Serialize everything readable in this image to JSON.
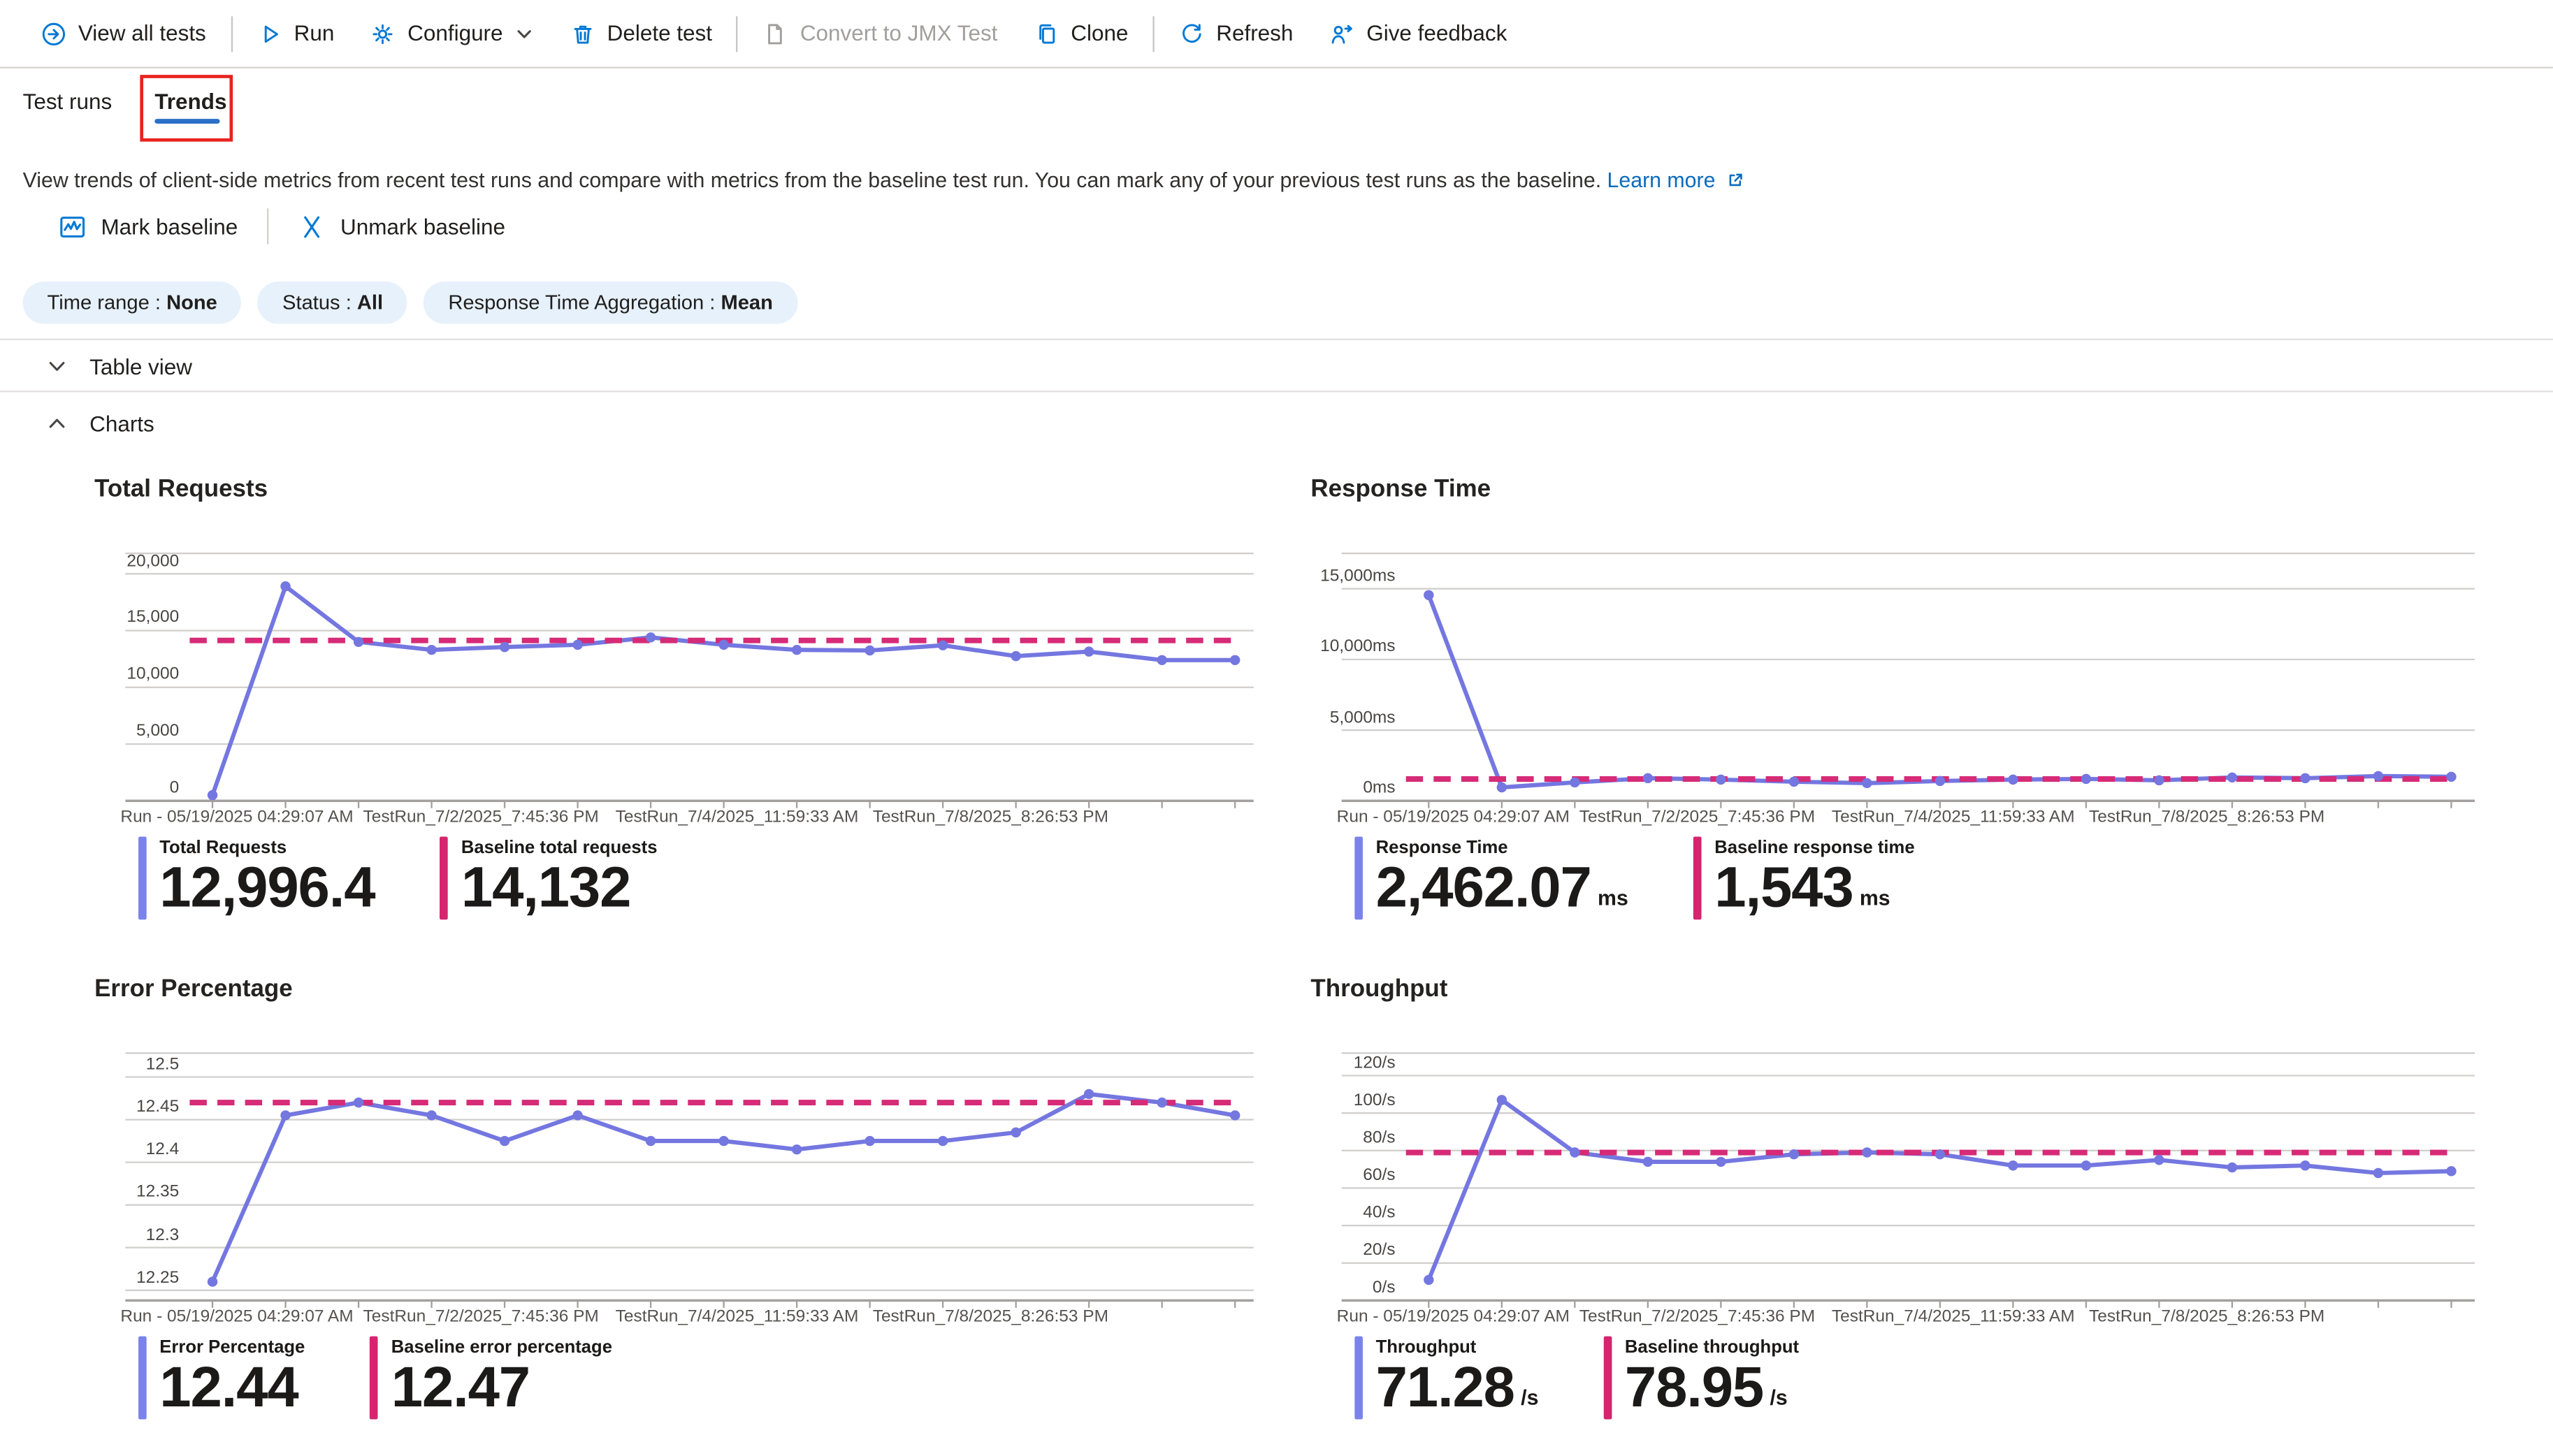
{
  "toolbar": {
    "view_all_tests": "View all tests",
    "run": "Run",
    "configure": "Configure",
    "delete_test": "Delete test",
    "convert_jmx": "Convert to JMX Test",
    "clone": "Clone",
    "refresh": "Refresh",
    "give_feedback": "Give feedback"
  },
  "tabs": {
    "test_runs": "Test runs",
    "trends": "Trends"
  },
  "description": {
    "text": "View trends of client-side metrics from recent test runs and compare with metrics from the baseline test run. You can mark any of your previous test runs as the baseline.",
    "link": "Learn more"
  },
  "baseline_actions": {
    "mark": "Mark baseline",
    "unmark": "Unmark baseline"
  },
  "filters": [
    {
      "text": "Time range : ",
      "value": "None"
    },
    {
      "text": "Status : ",
      "value": "All"
    },
    {
      "text": "Response Time Aggregation : ",
      "value": "Mean"
    }
  ],
  "sections": {
    "table_view": "Table view",
    "charts": "Charts"
  },
  "colors": {
    "accent": "#0078d4",
    "series_line": "#7477e0",
    "baseline_dash": "#d62b77",
    "stat_bar": "#7b83eb",
    "stat_baseline_bar": "#d6246e",
    "focus_red": "#e8231f"
  },
  "x_axis_labels": [
    "Run - 05/19/2025 04:29:07 AM",
    "TestRun_7/2/2025_7:45:36 PM",
    "TestRun_7/4/2025_11:59:33 AM",
    "TestRun_7/8/2025_8:26:53 PM"
  ],
  "chart_data": [
    {
      "type": "line",
      "title": "Total Requests",
      "y_domain": [
        0,
        21800
      ],
      "y_gridlines": [
        {
          "value": 0,
          "label": "0"
        },
        {
          "value": 5000,
          "label": "5,000"
        },
        {
          "value": 10000,
          "label": "10,000"
        },
        {
          "value": 15000,
          "label": "15,000"
        },
        {
          "value": 20000,
          "label": "20,000"
        }
      ],
      "series": [
        {
          "name": "Total Requests",
          "values": [
            500,
            18900,
            14000,
            13300,
            13550,
            13750,
            14400,
            13750,
            13300,
            13250,
            13700,
            12750,
            13150,
            12400,
            12400
          ]
        },
        {
          "name": "Baseline total requests",
          "style": "dashed",
          "value": 14132
        }
      ],
      "stats": [
        {
          "label": "Total Requests",
          "value": "12,996.4",
          "unit": ""
        },
        {
          "label": "Baseline total requests",
          "value": "14,132",
          "unit": ""
        }
      ]
    },
    {
      "type": "line",
      "title": "Response Time",
      "y_domain": [
        0,
        17500
      ],
      "y_gridlines": [
        {
          "value": 0,
          "label": "0ms"
        },
        {
          "value": 5000,
          "label": "5,000ms"
        },
        {
          "value": 10000,
          "label": "10,000ms"
        },
        {
          "value": 15000,
          "label": "15,000ms"
        }
      ],
      "series": [
        {
          "name": "Response Time",
          "values": [
            14550,
            950,
            1300,
            1600,
            1500,
            1350,
            1250,
            1400,
            1500,
            1550,
            1450,
            1650,
            1600,
            1750,
            1700
          ]
        },
        {
          "name": "Baseline response time",
          "style": "dashed",
          "value": 1543
        }
      ],
      "stats": [
        {
          "label": "Response Time",
          "value": "2,462.07",
          "unit": "ms"
        },
        {
          "label": "Baseline response time",
          "value": "1,543",
          "unit": "ms"
        }
      ]
    },
    {
      "type": "line",
      "title": "Error Percentage",
      "y_domain": [
        12.238,
        12.528
      ],
      "y_gridlines": [
        {
          "value": 12.25,
          "label": "12.25"
        },
        {
          "value": 12.3,
          "label": "12.3"
        },
        {
          "value": 12.35,
          "label": "12.35"
        },
        {
          "value": 12.4,
          "label": "12.4"
        },
        {
          "value": 12.45,
          "label": "12.45"
        },
        {
          "value": 12.5,
          "label": "12.5"
        }
      ],
      "series": [
        {
          "name": "Error Percentage",
          "values": [
            12.26,
            12.455,
            12.47,
            12.455,
            12.425,
            12.455,
            12.425,
            12.425,
            12.415,
            12.425,
            12.425,
            12.435,
            12.48,
            12.47,
            12.455
          ]
        },
        {
          "name": "Baseline error percentage",
          "style": "dashed",
          "value": 12.47
        }
      ],
      "stats": [
        {
          "label": "Error Percentage",
          "value": "12.44",
          "unit": ""
        },
        {
          "label": "Baseline error percentage",
          "value": "12.47",
          "unit": ""
        }
      ]
    },
    {
      "type": "line",
      "title": "Throughput",
      "y_domain": [
        0,
        132
      ],
      "y_gridlines": [
        {
          "value": 0,
          "label": "0/s"
        },
        {
          "value": 20,
          "label": "20/s"
        },
        {
          "value": 40,
          "label": "40/s"
        },
        {
          "value": 60,
          "label": "60/s"
        },
        {
          "value": 80,
          "label": "80/s"
        },
        {
          "value": 100,
          "label": "100/s"
        },
        {
          "value": 120,
          "label": "120/s"
        }
      ],
      "series": [
        {
          "name": "Throughput",
          "values": [
            11,
            107,
            79,
            74,
            74,
            78,
            79,
            78,
            72,
            72,
            75,
            71,
            72,
            68,
            69
          ]
        },
        {
          "name": "Baseline throughput",
          "style": "dashed",
          "value": 78.95
        }
      ],
      "stats": [
        {
          "label": "Throughput",
          "value": "71.28",
          "unit": "/s"
        },
        {
          "label": "Baseline throughput",
          "value": "78.95",
          "unit": "/s"
        }
      ]
    }
  ]
}
